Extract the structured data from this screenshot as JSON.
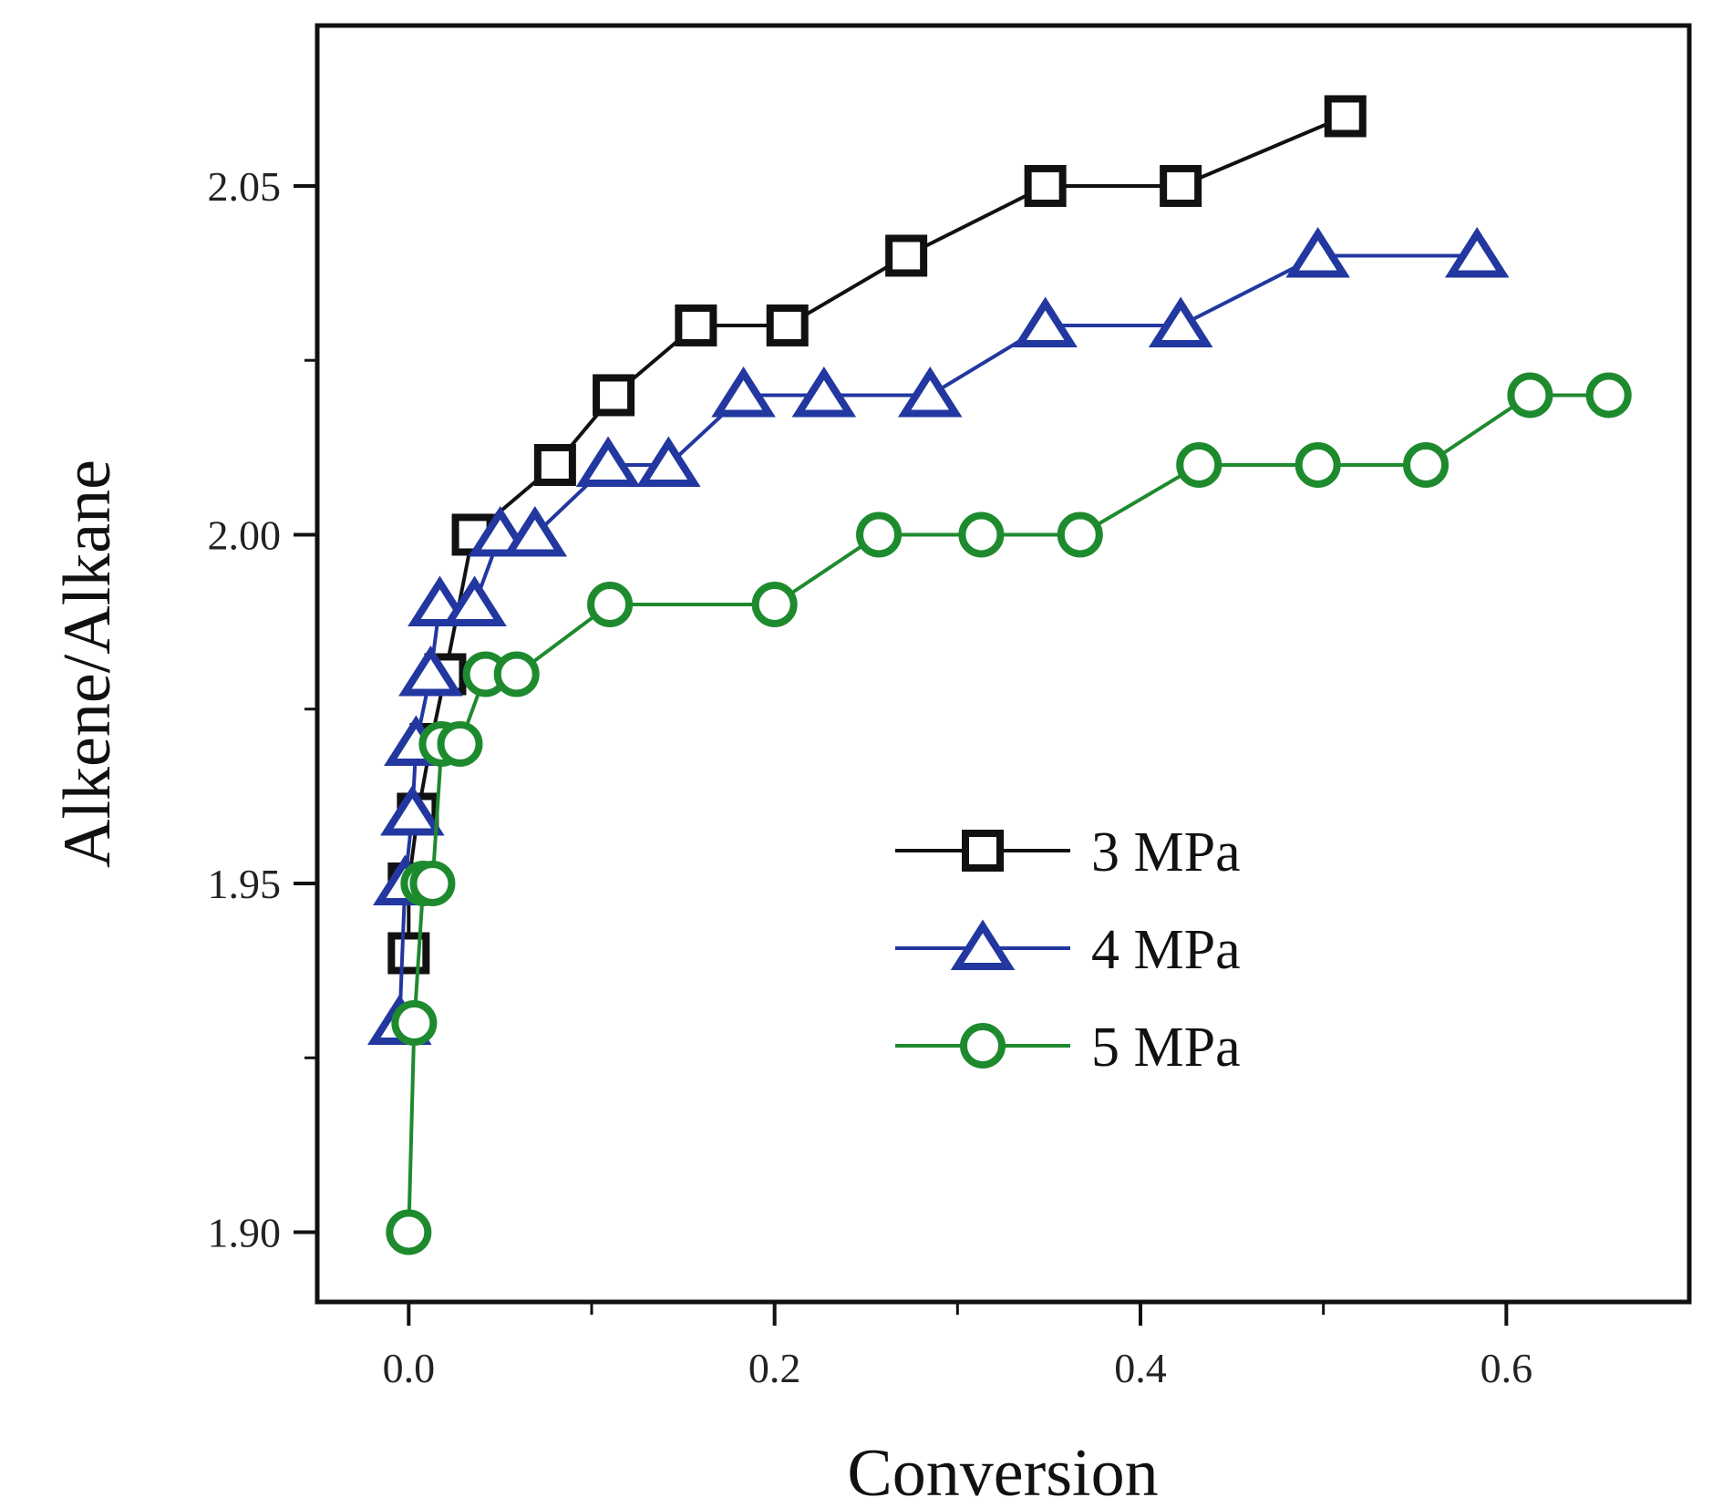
{
  "chart_data": {
    "type": "line",
    "title": "",
    "xlabel": "Conversion",
    "ylabel": "Alkene/Alkane",
    "xlim": [
      -0.05,
      0.7
    ],
    "ylim": [
      1.89,
      2.073
    ],
    "xticks": [
      {
        "value": 0.0,
        "label": "0.0"
      },
      {
        "value": 0.2,
        "label": "0.2"
      },
      {
        "value": 0.4,
        "label": "0.4"
      },
      {
        "value": 0.6,
        "label": "0.6"
      }
    ],
    "xminor": [
      0.1,
      0.3,
      0.5
    ],
    "yticks": [
      {
        "value": 1.9,
        "label": "1.90"
      },
      {
        "value": 1.95,
        "label": "1.95"
      },
      {
        "value": 2.0,
        "label": "2.00"
      },
      {
        "value": 2.05,
        "label": "2.05"
      }
    ],
    "yminor": [
      1.925,
      1.975,
      2.025
    ],
    "grid": false,
    "legend_position": "center-right",
    "series": [
      {
        "name": "3 MPa",
        "color": "#111111",
        "marker": "square",
        "points": [
          [
            0.0,
            1.94
          ],
          [
            0.0,
            1.95
          ],
          [
            0.005,
            1.96
          ],
          [
            0.012,
            1.97
          ],
          [
            0.02,
            1.98
          ],
          [
            0.035,
            2.0
          ],
          [
            0.08,
            2.01
          ],
          [
            0.112,
            2.02
          ],
          [
            0.157,
            2.03
          ],
          [
            0.207,
            2.03
          ],
          [
            0.272,
            2.04
          ],
          [
            0.348,
            2.05
          ],
          [
            0.422,
            2.05
          ],
          [
            0.512,
            2.06
          ]
        ]
      },
      {
        "name": "4 MPa",
        "color": "#2237a0",
        "marker": "triangle",
        "points": [
          [
            -0.005,
            1.93
          ],
          [
            -0.002,
            1.95
          ],
          [
            0.002,
            1.96
          ],
          [
            0.004,
            1.97
          ],
          [
            0.012,
            1.98
          ],
          [
            0.017,
            1.99
          ],
          [
            0.036,
            1.99
          ],
          [
            0.05,
            2.0
          ],
          [
            0.069,
            2.0
          ],
          [
            0.109,
            2.01
          ],
          [
            0.142,
            2.01
          ],
          [
            0.183,
            2.02
          ],
          [
            0.227,
            2.02
          ],
          [
            0.285,
            2.02
          ],
          [
            0.348,
            2.03
          ],
          [
            0.422,
            2.03
          ],
          [
            0.497,
            2.04
          ],
          [
            0.584,
            2.04
          ]
        ]
      },
      {
        "name": "5 MPa",
        "color": "#1e8a2e",
        "marker": "circle",
        "points": [
          [
            0.0,
            1.9
          ],
          [
            0.003,
            1.93
          ],
          [
            0.008,
            1.95
          ],
          [
            0.013,
            1.95
          ],
          [
            0.018,
            1.97
          ],
          [
            0.028,
            1.97
          ],
          [
            0.042,
            1.98
          ],
          [
            0.059,
            1.98
          ],
          [
            0.11,
            1.99
          ],
          [
            0.2,
            1.99
          ],
          [
            0.257,
            2.0
          ],
          [
            0.313,
            2.0
          ],
          [
            0.367,
            2.0
          ],
          [
            0.432,
            2.01
          ],
          [
            0.497,
            2.01
          ],
          [
            0.556,
            2.01
          ],
          [
            0.613,
            2.02
          ],
          [
            0.656,
            2.02
          ]
        ]
      }
    ]
  }
}
